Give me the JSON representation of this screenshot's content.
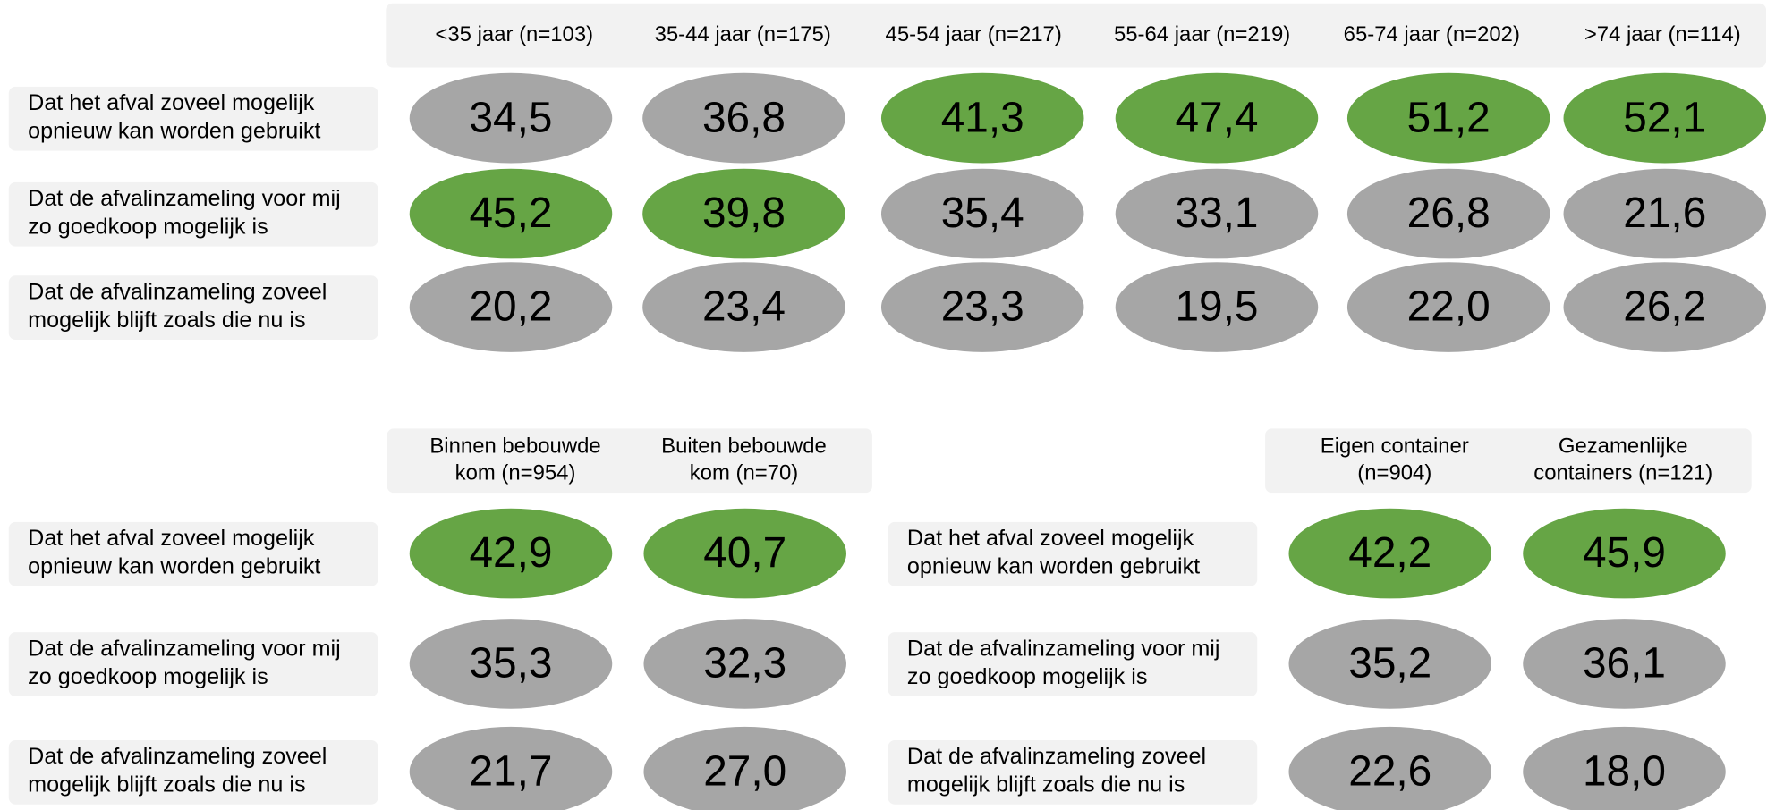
{
  "colors": {
    "highlight": "#66a545",
    "normal": "#a6a6a6",
    "panel": "#f2f2f2"
  },
  "tables": [
    {
      "columns": [
        "<35 jaar (n=103)",
        "35-44 jaar (n=175)",
        "45-54 jaar (n=217)",
        "55-64 jaar (n=219)",
        "65-74 jaar (n=202)",
        ">74 jaar (n=114)"
      ],
      "rows": [
        {
          "label": [
            "Dat het afval zoveel mogelijk",
            "opnieuw kan worden gebruikt"
          ],
          "cells": [
            {
              "value": "34,5",
              "highlight": false
            },
            {
              "value": "36,8",
              "highlight": false
            },
            {
              "value": "41,3",
              "highlight": true
            },
            {
              "value": "47,4",
              "highlight": true
            },
            {
              "value": "51,2",
              "highlight": true
            },
            {
              "value": "52,1",
              "highlight": true
            }
          ]
        },
        {
          "label": [
            "Dat de afvalinzameling voor mij",
            "zo goedkoop mogelijk is"
          ],
          "cells": [
            {
              "value": "45,2",
              "highlight": true
            },
            {
              "value": "39,8",
              "highlight": true
            },
            {
              "value": "35,4",
              "highlight": false
            },
            {
              "value": "33,1",
              "highlight": false
            },
            {
              "value": "26,8",
              "highlight": false
            },
            {
              "value": "21,6",
              "highlight": false
            }
          ]
        },
        {
          "label": [
            "Dat de afvalinzameling zoveel",
            "mogelijk blijft zoals die nu is"
          ],
          "cells": [
            {
              "value": "20,2",
              "highlight": false
            },
            {
              "value": "23,4",
              "highlight": false
            },
            {
              "value": "23,3",
              "highlight": false
            },
            {
              "value": "19,5",
              "highlight": false
            },
            {
              "value": "22,0",
              "highlight": false
            },
            {
              "value": "26,2",
              "highlight": false
            }
          ]
        }
      ]
    },
    {
      "columns": [
        [
          "Binnen bebouwde",
          "kom (n=954)"
        ],
        [
          "Buiten bebouwde",
          "kom (n=70)"
        ]
      ],
      "rows": [
        {
          "label": [
            "Dat het afval zoveel mogelijk",
            "opnieuw kan worden gebruikt"
          ],
          "cells": [
            {
              "value": "42,9",
              "highlight": true
            },
            {
              "value": "40,7",
              "highlight": true
            }
          ]
        },
        {
          "label": [
            "Dat de afvalinzameling voor mij",
            "zo goedkoop mogelijk is"
          ],
          "cells": [
            {
              "value": "35,3",
              "highlight": false
            },
            {
              "value": "32,3",
              "highlight": false
            }
          ]
        },
        {
          "label": [
            "Dat de afvalinzameling zoveel",
            "mogelijk blijft zoals die nu is"
          ],
          "cells": [
            {
              "value": "21,7",
              "highlight": false
            },
            {
              "value": "27,0",
              "highlight": false
            }
          ]
        }
      ]
    },
    {
      "columns": [
        [
          "Eigen container",
          "(n=904)"
        ],
        [
          "Gezamenlijke",
          "containers (n=121)"
        ]
      ],
      "rows": [
        {
          "label": [
            "Dat het afval zoveel mogelijk",
            "opnieuw kan worden gebruikt"
          ],
          "cells": [
            {
              "value": "42,2",
              "highlight": true
            },
            {
              "value": "45,9",
              "highlight": true
            }
          ]
        },
        {
          "label": [
            "Dat de afvalinzameling voor mij",
            "zo goedkoop mogelijk is"
          ],
          "cells": [
            {
              "value": "35,2",
              "highlight": false
            },
            {
              "value": "36,1",
              "highlight": false
            }
          ]
        },
        {
          "label": [
            "Dat de afvalinzameling zoveel",
            "mogelijk blijft zoals die nu is"
          ],
          "cells": [
            {
              "value": "22,6",
              "highlight": false
            },
            {
              "value": "18,0",
              "highlight": false
            }
          ]
        }
      ]
    }
  ]
}
